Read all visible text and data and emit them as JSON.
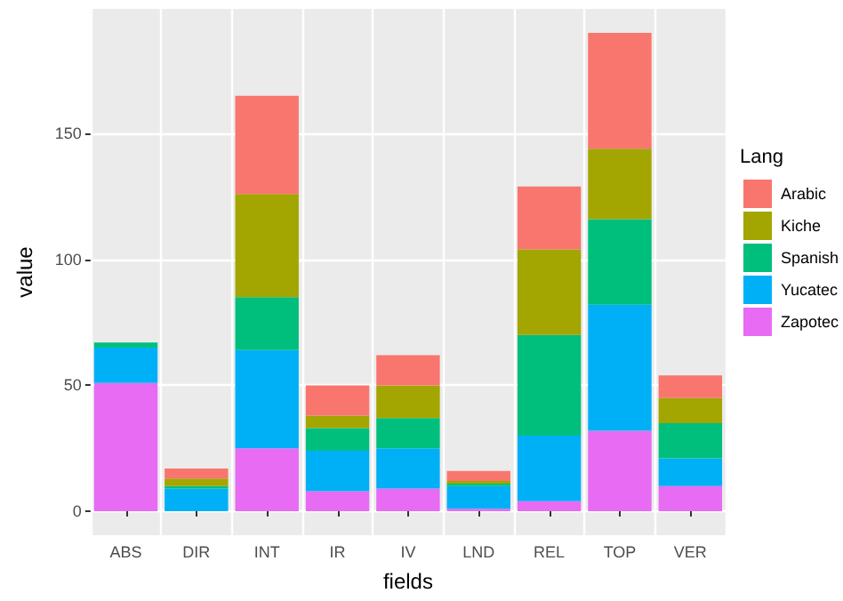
{
  "chart_data": {
    "type": "bar",
    "stacked": true,
    "xlabel": "fields",
    "ylabel": "value",
    "legend_title": "Lang",
    "legend": "right",
    "categories": [
      "ABS",
      "DIR",
      "INT",
      "IR",
      "IV",
      "LND",
      "REL",
      "TOP",
      "VER"
    ],
    "series": [
      {
        "name": "Zapotec",
        "color": "#e76bf3",
        "values": [
          51,
          0,
          25,
          8,
          9,
          1,
          4,
          32,
          10
        ]
      },
      {
        "name": "Yucatec",
        "color": "#00b0f6",
        "values": [
          14,
          9,
          39,
          16,
          16,
          9,
          26,
          50,
          11
        ]
      },
      {
        "name": "Spanish",
        "color": "#00bf7d",
        "values": [
          2,
          1,
          21,
          9,
          12,
          1,
          40,
          34,
          14
        ]
      },
      {
        "name": "Kiche",
        "color": "#a3a500",
        "values": [
          0,
          3,
          41,
          5,
          13,
          1,
          34,
          28,
          10
        ]
      },
      {
        "name": "Arabic",
        "color": "#f8766d",
        "values": [
          0,
          4,
          39,
          12,
          12,
          4,
          25,
          46,
          9
        ]
      }
    ],
    "ylim": [
      -9.5,
      199.5
    ],
    "yticks": [
      0,
      50,
      100,
      150
    ],
    "grid": true
  }
}
